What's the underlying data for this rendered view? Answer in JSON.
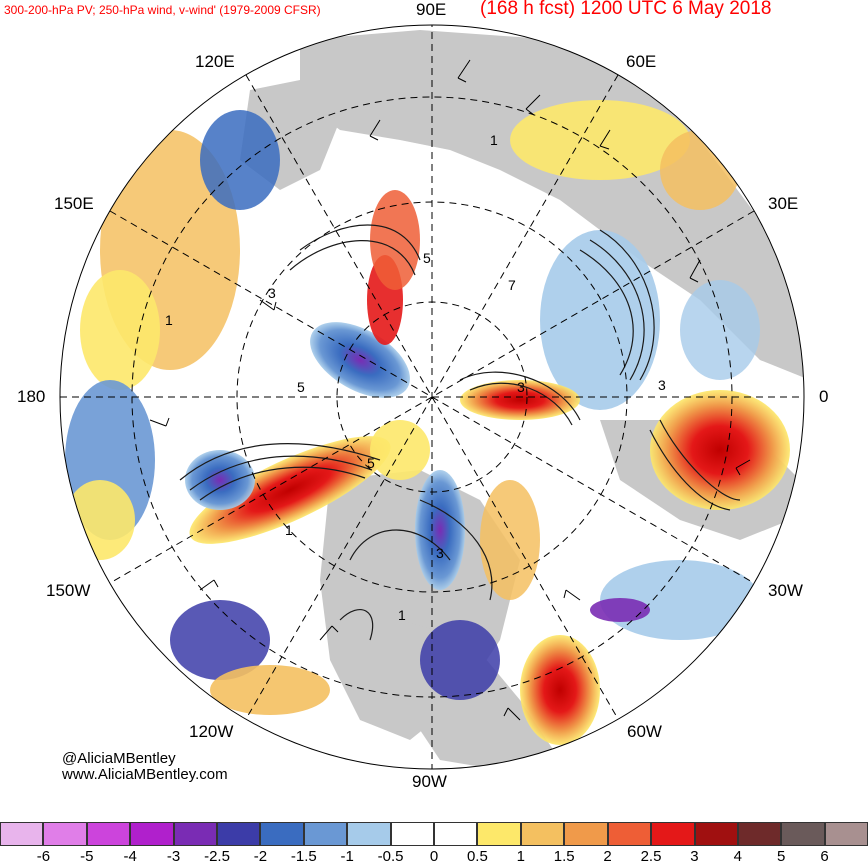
{
  "header": {
    "left_title": "300-200-hPa PV; 250-hPa wind, v-wind' (1979-2009 CFSR)",
    "right_title": "(168 h fcst) 1200 UTC 6 May 2018"
  },
  "longitude_labels": {
    "n90e": "90E",
    "n60e": "60E",
    "n120e": "120E",
    "n150e": "150E",
    "n30e": "30E",
    "n180": "180",
    "n0": "0",
    "n150w": "150W",
    "n30w": "30W",
    "n120w": "120W",
    "n60w": "60W",
    "n90w": "90W"
  },
  "credits": {
    "handle": "@AliciaMBentley",
    "website": "www.AliciaMBentley.com"
  },
  "colorbar": {
    "colors": [
      "#e8b4ec",
      "#e07ee8",
      "#cc44dc",
      "#b020cc",
      "#7a2cb4",
      "#3c3ca8",
      "#3a6cc0",
      "#6a98d4",
      "#a6cbea",
      "#ffffff",
      "#ffffff",
      "#fde86a",
      "#f4c060",
      "#f09a4a",
      "#ee5e36",
      "#e41818",
      "#a01010",
      "#6e2a2a",
      "#6a5a5a",
      "#a89090"
    ],
    "tick_labels": [
      "-6",
      "-5",
      "-4",
      "-3",
      "-2.5",
      "-2",
      "-1.5",
      "-1",
      "-0.5",
      "0",
      "0.5",
      "1",
      "1.5",
      "2",
      "2.5",
      "3",
      "4",
      "5",
      "6"
    ]
  },
  "map_contour_labels": [
    "1",
    "1",
    "1",
    "1",
    "3",
    "3",
    "3",
    "3",
    "5",
    "5",
    "5",
    "7"
  ],
  "colors": {
    "title_red": "#ff0000",
    "land_gray": "#c8c8c8",
    "ocean_white": "#ffffff"
  }
}
